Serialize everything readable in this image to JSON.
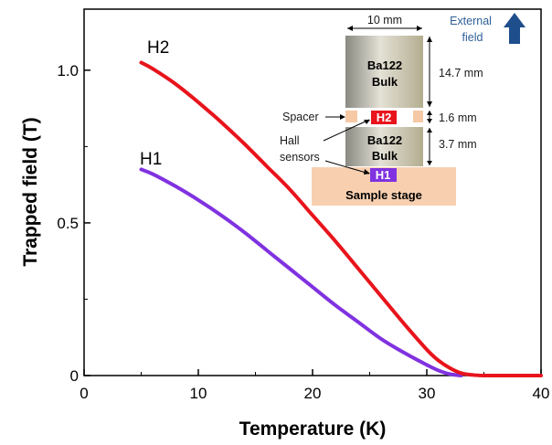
{
  "chart_data": {
    "type": "line",
    "xlabel": "Temperature (K)",
    "ylabel": "Trapped field (T)",
    "xlim": [
      0,
      40
    ],
    "ylim": [
      0,
      1.2
    ],
    "xticks": [
      0,
      10,
      20,
      30,
      40
    ],
    "yticks": [
      0,
      0.5,
      1.0
    ],
    "xtick_labels": [
      "0",
      "10",
      "20",
      "30",
      "40"
    ],
    "ytick_labels": [
      "0",
      "0.5",
      "1.0"
    ],
    "grid": false,
    "series": [
      {
        "name": "H2",
        "color": "#e8141c",
        "x": [
          5,
          6,
          8,
          10,
          12,
          14,
          16,
          18,
          20,
          22,
          24,
          26,
          28,
          30,
          31,
          32,
          33,
          34,
          35,
          36,
          38,
          40
        ],
        "y": [
          1.025,
          1.005,
          0.955,
          0.895,
          0.83,
          0.76,
          0.685,
          0.61,
          0.525,
          0.44,
          0.35,
          0.26,
          0.17,
          0.085,
          0.05,
          0.025,
          0.008,
          0.002,
          0,
          0,
          0,
          0
        ]
      },
      {
        "name": "H1",
        "color": "#8032e0",
        "x": [
          5,
          6,
          8,
          10,
          12,
          14,
          16,
          18,
          20,
          22,
          24,
          26,
          28,
          30,
          31,
          32,
          33
        ],
        "y": [
          0.675,
          0.66,
          0.62,
          0.575,
          0.525,
          0.47,
          0.41,
          0.35,
          0.29,
          0.23,
          0.175,
          0.12,
          0.075,
          0.035,
          0.017,
          0.005,
          0
        ]
      }
    ],
    "inset": {
      "width_label": "10 mm",
      "external_field_label": [
        "External",
        "field"
      ],
      "bulk_top_label": [
        "Ba122",
        "Bulk"
      ],
      "bulk_bottom_label": [
        "Ba122",
        "Bulk"
      ],
      "dim_top": "14.7 mm",
      "dim_spacer": "1.6 mm",
      "dim_bottom": "3.7 mm",
      "spacer_label": "Spacer",
      "hall_label": [
        "Hall",
        "sensors"
      ],
      "sensor_h2": "H2",
      "sensor_h1": "H1",
      "stage_label": "Sample stage",
      "h2_color": "#e8141c",
      "h1_color": "#8032e0",
      "stage_color": "#f8d0b0",
      "arrow_color": "#1f4e8c"
    }
  }
}
